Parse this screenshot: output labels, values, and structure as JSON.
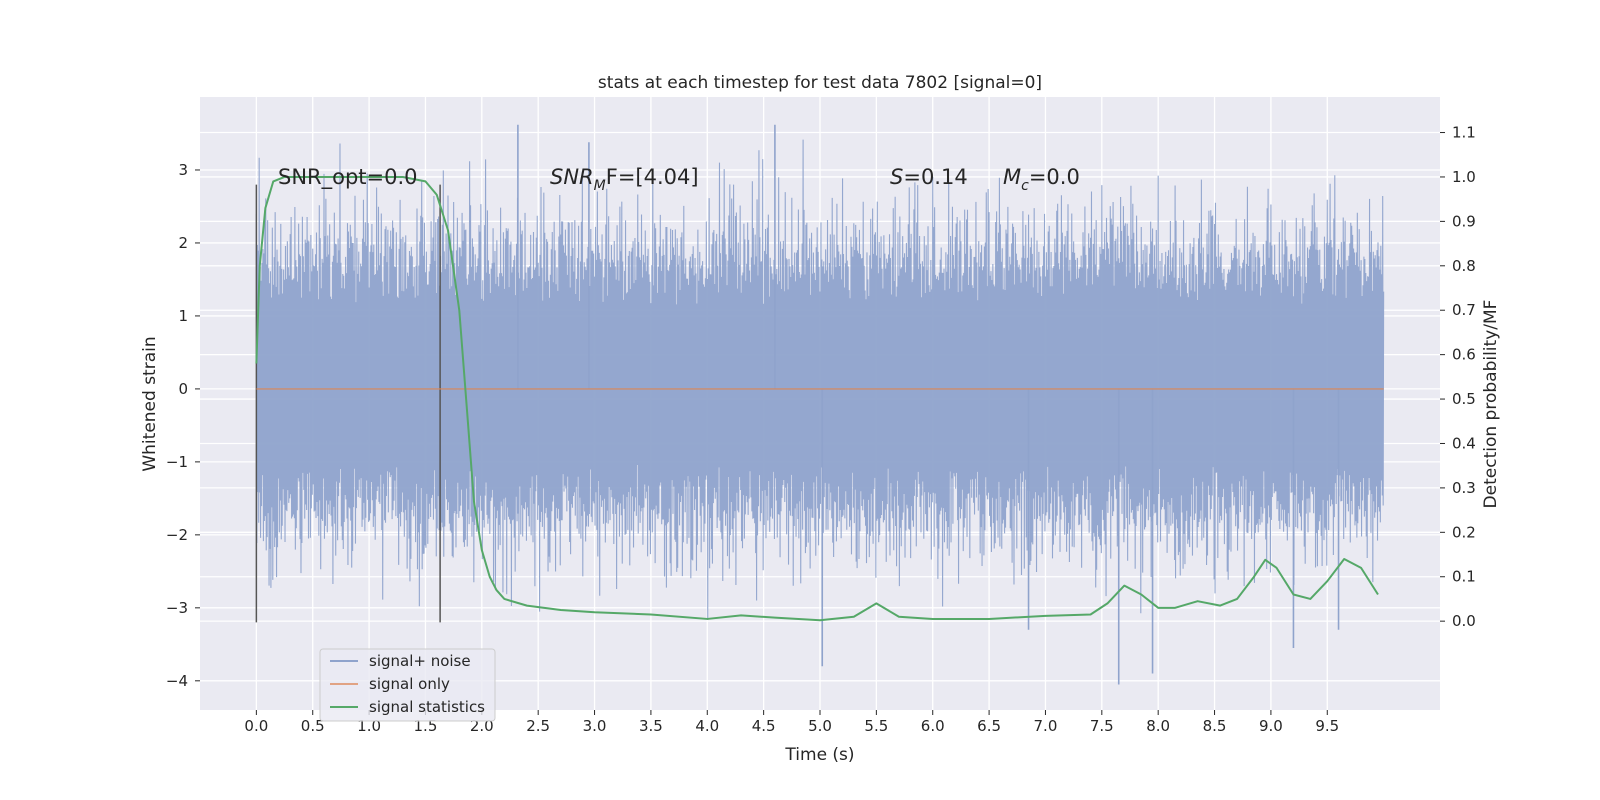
{
  "chart_data": {
    "type": "line",
    "title": "stats at each timestep for test data 7802 [signal=0]",
    "xlabel": "Time (s)",
    "ylabel": "Whitened strain",
    "y2label": "Detection probability/MF",
    "xlim": [
      -0.5,
      10.5
    ],
    "ylim": [
      -4.4,
      4.0
    ],
    "y2lim": [
      -0.2,
      1.18
    ],
    "grid": true,
    "x_ticks": [
      0.0,
      0.5,
      1.0,
      1.5,
      2.0,
      2.5,
      3.0,
      3.5,
      4.0,
      4.5,
      5.0,
      5.5,
      6.0,
      6.5,
      7.0,
      7.5,
      8.0,
      8.5,
      9.0,
      9.5
    ],
    "x_tick_labels": [
      "0.0",
      "0.5",
      "1.0",
      "1.5",
      "2.0",
      "2.5",
      "3.0",
      "3.5",
      "4.0",
      "4.5",
      "5.0",
      "5.5",
      "6.0",
      "6.5",
      "7.0",
      "7.5",
      "8.0",
      "8.5",
      "9.0",
      "9.5"
    ],
    "y_ticks": [
      3,
      2,
      1,
      0,
      -1,
      -2,
      -3,
      -4
    ],
    "y_tick_labels": [
      "3",
      "2",
      "1",
      "0",
      "−1",
      "−2",
      "−3",
      "−4"
    ],
    "y2_ticks": [
      1.1,
      1.0,
      0.9,
      0.8,
      0.7,
      0.6,
      0.5,
      0.4,
      0.3,
      0.2,
      0.1,
      0.0
    ],
    "y2_tick_labels": [
      "1.1",
      "1.0",
      "0.9",
      "0.8",
      "0.7",
      "0.6",
      "0.5",
      "0.4",
      "0.3",
      "0.2",
      "0.1",
      "0.0"
    ],
    "legend_position": "lower-left",
    "legend": [
      "signal+ noise",
      "signal only",
      "signal statistics"
    ],
    "annotations": {
      "snr_opt": "SNR_opt=0.0",
      "snr_mf_main": "SNR",
      "snr_mf_sub": "M",
      "snr_mf_rest": "F=[4.04]",
      "s_main": "S",
      "s_rest": "=0.14",
      "mc_main": "M",
      "mc_sub": "c",
      "mc_rest": "=0.0"
    },
    "vertical_markers": [
      0.0,
      1.63
    ],
    "series": [
      {
        "name": "signal+ noise",
        "color": "#8fa3cc",
        "x_range": [
          0.0,
          10.0
        ],
        "envelope": {
          "typical_low": -1.5,
          "typical_high": 1.6,
          "min": -4.05,
          "max": 3.62
        },
        "spikes": [
          [
            2.32,
            3.62
          ],
          [
            2.95,
            3.38
          ],
          [
            4.6,
            3.62
          ],
          [
            5.02,
            -3.8
          ],
          [
            7.65,
            -4.05
          ],
          [
            7.95,
            -3.9
          ],
          [
            9.2,
            -3.55
          ],
          [
            9.6,
            -3.3
          ],
          [
            6.85,
            -3.3
          ]
        ]
      },
      {
        "name": "signal only",
        "color": "#dd8452",
        "x": [
          0.0,
          10.0
        ],
        "values": [
          0.0,
          0.0
        ]
      },
      {
        "name": "signal statistics",
        "color": "#55a868",
        "axis": "right",
        "x": [
          0.0,
          0.03,
          0.08,
          0.15,
          0.25,
          0.5,
          1.0,
          1.3,
          1.5,
          1.6,
          1.7,
          1.8,
          1.87,
          1.93,
          2.0,
          2.07,
          2.13,
          2.2,
          2.4,
          2.7,
          3.0,
          3.5,
          4.0,
          4.3,
          4.6,
          5.0,
          5.3,
          5.5,
          5.7,
          6.0,
          6.5,
          7.0,
          7.4,
          7.55,
          7.7,
          7.85,
          8.0,
          8.15,
          8.35,
          8.55,
          8.7,
          8.85,
          8.95,
          9.05,
          9.2,
          9.35,
          9.5,
          9.65,
          9.8,
          9.95
        ],
        "values": [
          0.58,
          0.8,
          0.93,
          0.99,
          1.0,
          1.0,
          1.0,
          1.0,
          0.99,
          0.96,
          0.88,
          0.7,
          0.47,
          0.27,
          0.16,
          0.1,
          0.07,
          0.05,
          0.035,
          0.025,
          0.02,
          0.015,
          0.005,
          0.013,
          0.008,
          0.002,
          0.01,
          0.04,
          0.01,
          0.005,
          0.005,
          0.012,
          0.015,
          0.04,
          0.08,
          0.06,
          0.03,
          0.03,
          0.045,
          0.035,
          0.05,
          0.1,
          0.138,
          0.12,
          0.06,
          0.05,
          0.09,
          0.14,
          0.12,
          0.06
        ]
      }
    ]
  }
}
